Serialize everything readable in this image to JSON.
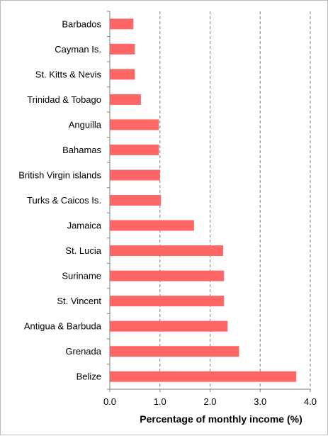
{
  "chart_data": {
    "type": "bar",
    "orientation": "horizontal",
    "categories": [
      "Barbados",
      "Cayman Is.",
      "St. Kitts & Nevis",
      "Trinidad & Tobago",
      "Anguilla",
      "Bahamas",
      "British Virgin islands",
      "Turks & Caicos Is.",
      "Jamaica",
      "St. Lucia",
      "Suriname",
      "St. Vincent",
      "Antigua & Barbuda",
      "Grenada",
      "Belize"
    ],
    "values": [
      0.47,
      0.5,
      0.5,
      0.62,
      0.98,
      0.98,
      1.0,
      1.02,
      1.68,
      2.26,
      2.28,
      2.28,
      2.35,
      2.58,
      3.72
    ],
    "xlabel": "Percentage of monthly income (%)",
    "xlim": [
      0,
      4.0
    ],
    "xticks": [
      "0.0",
      "1.0",
      "2.0",
      "3.0",
      "4.0"
    ],
    "gridlines": "vertical dashed",
    "bar_color": "#ff6666",
    "legend": "none"
  }
}
